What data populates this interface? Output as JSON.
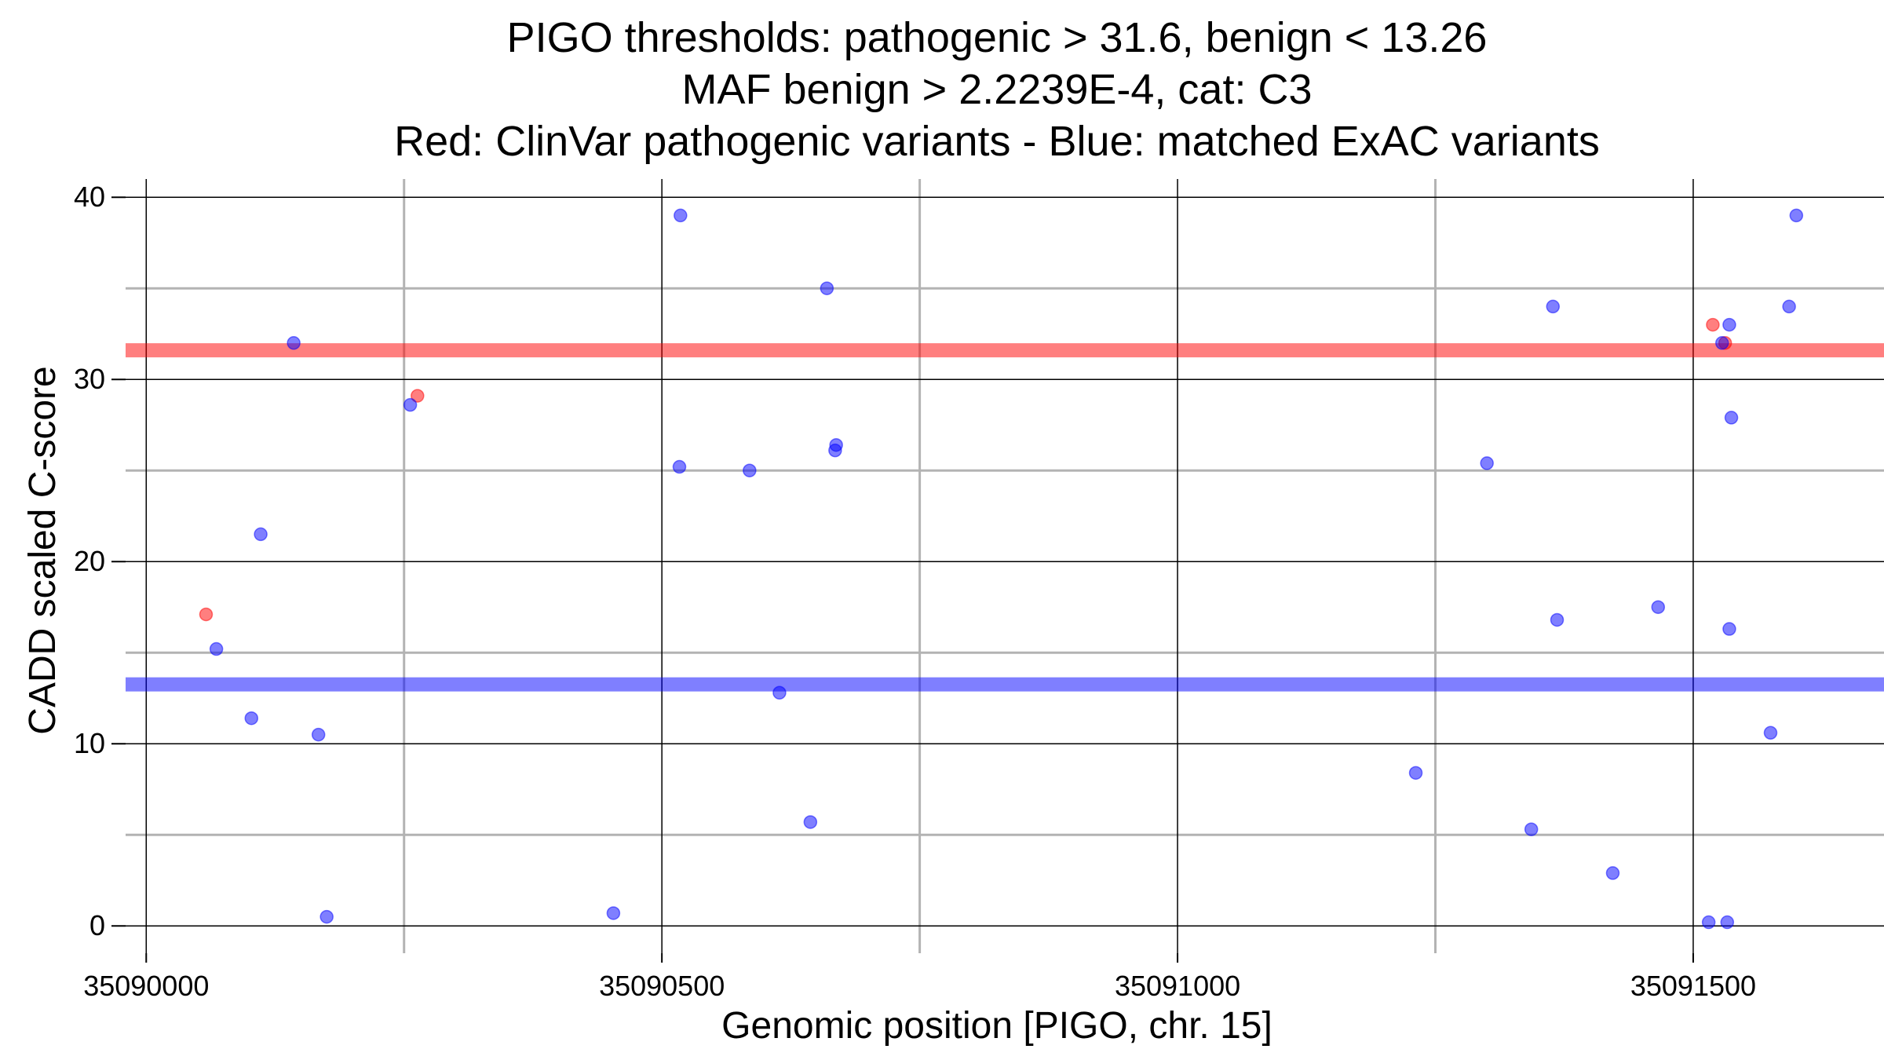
{
  "chart_data": {
    "type": "scatter",
    "title_lines": [
      "PIGO thresholds: pathogenic > 31.6, benign < 13.26",
      "MAF benign > 2.2239E-4, cat: C3",
      "Red: ClinVar pathogenic variants - Blue: matched ExAC variants"
    ],
    "xlabel": "Genomic position [PIGO, chr. 15]",
    "ylabel": "CADD scaled C-score",
    "xlim": [
      35089980,
      35091685
    ],
    "ylim": [
      -1.5,
      41
    ],
    "x_ticks": [
      {
        "value": 35090000,
        "label": "35090000"
      },
      {
        "value": 35090500,
        "label": "35090500"
      },
      {
        "value": 35091000,
        "label": "35091000"
      },
      {
        "value": 35091500,
        "label": "35091500"
      }
    ],
    "x_minor_grid": [
      35090250,
      35090750,
      35091250
    ],
    "y_ticks": [
      {
        "value": 0,
        "label": "0"
      },
      {
        "value": 10,
        "label": "10"
      },
      {
        "value": 20,
        "label": "20"
      },
      {
        "value": 30,
        "label": "30"
      },
      {
        "value": 40,
        "label": "40"
      }
    ],
    "y_minor_grid": [
      5,
      15,
      25,
      35
    ],
    "thresholds": [
      {
        "name": "pathogenic",
        "value": 31.6,
        "color": "#ff0000"
      },
      {
        "name": "benign",
        "value": 13.26,
        "color": "#0000ff"
      }
    ],
    "series": [
      {
        "name": "ClinVar pathogenic variants",
        "color": "#ff0000",
        "points": [
          {
            "x": 35090058,
            "y": 17.1
          },
          {
            "x": 35090263,
            "y": 29.1
          },
          {
            "x": 35091519,
            "y": 33.0
          },
          {
            "x": 35091531,
            "y": 32.0
          }
        ]
      },
      {
        "name": "matched ExAC variants",
        "color": "#0000ff",
        "points": [
          {
            "x": 35090068,
            "y": 15.2
          },
          {
            "x": 35090102,
            "y": 11.4
          },
          {
            "x": 35090111,
            "y": 21.5
          },
          {
            "x": 35090143,
            "y": 32.0
          },
          {
            "x": 35090167,
            "y": 10.5
          },
          {
            "x": 35090175,
            "y": 0.5
          },
          {
            "x": 35090256,
            "y": 28.6
          },
          {
            "x": 35090453,
            "y": 0.7
          },
          {
            "x": 35090517,
            "y": 25.2
          },
          {
            "x": 35090518,
            "y": 39.0
          },
          {
            "x": 35090585,
            "y": 25.0
          },
          {
            "x": 35090614,
            "y": 12.8
          },
          {
            "x": 35090644,
            "y": 5.7
          },
          {
            "x": 35090660,
            "y": 35.0
          },
          {
            "x": 35090668,
            "y": 26.1
          },
          {
            "x": 35090669,
            "y": 26.4
          },
          {
            "x": 35091231,
            "y": 8.4
          },
          {
            "x": 35091300,
            "y": 25.4
          },
          {
            "x": 35091343,
            "y": 5.3
          },
          {
            "x": 35091364,
            "y": 34.0
          },
          {
            "x": 35091368,
            "y": 16.8
          },
          {
            "x": 35091422,
            "y": 2.9
          },
          {
            "x": 35091466,
            "y": 17.5
          },
          {
            "x": 35091515,
            "y": 0.2
          },
          {
            "x": 35091528,
            "y": 32.0
          },
          {
            "x": 35091533,
            "y": 0.2
          },
          {
            "x": 35091535,
            "y": 33.0
          },
          {
            "x": 35091535,
            "y": 16.3
          },
          {
            "x": 35091537,
            "y": 27.9
          },
          {
            "x": 35091575,
            "y": 10.6
          },
          {
            "x": 35091593,
            "y": 34.0
          },
          {
            "x": 35091600,
            "y": 39.0
          }
        ]
      }
    ]
  }
}
